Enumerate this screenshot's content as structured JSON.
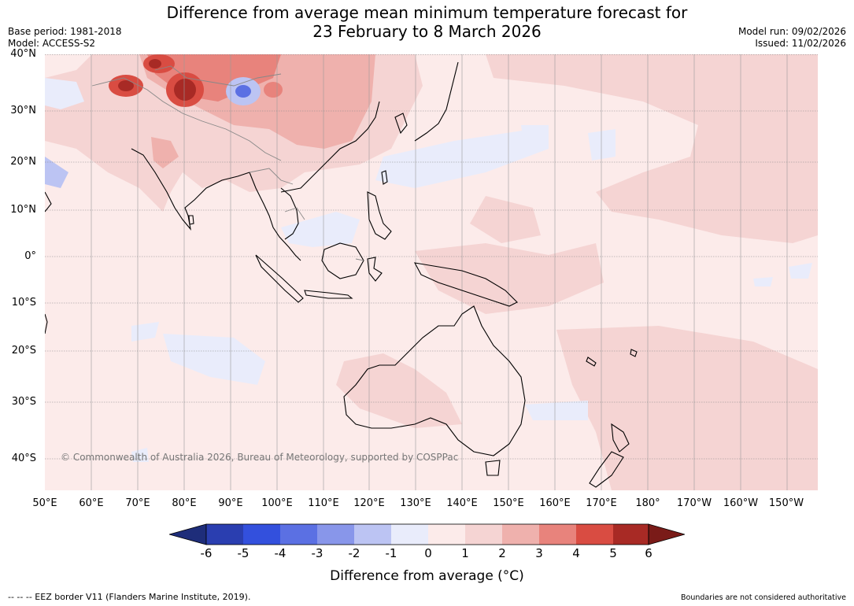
{
  "title_line1": "Difference from average mean minimum temperature forecast for",
  "title_line2": "23 February to 8 March 2026",
  "base_period": "Base period: 1981-2018",
  "model": "Model: ACCESS-S2",
  "model_run": "Model run: 09/02/2026",
  "issued": "Issued: 11/02/2026",
  "copyright": "© Commonwealth of Australia 2026, Bureau of Meteorology, supported by COSPPac",
  "eez_note": "--  --  -- EEZ border V11 (Flanders Marine Institute, 2019).",
  "boundaries_note": "Boundaries are not considered authoritative",
  "lat_labels": [
    "40°N",
    "30°N",
    "20°N",
    "10°N",
    "0°",
    "10°S",
    "20°S",
    "30°S",
    "40°S"
  ],
  "lon_labels": [
    "50°E",
    "60°E",
    "70°E",
    "80°E",
    "90°E",
    "100°E",
    "110°E",
    "120°E",
    "130°E",
    "140°E",
    "150°E",
    "160°E",
    "170°E",
    "180°",
    "170°W",
    "160°W",
    "150°W"
  ],
  "colorbar": {
    "title": "Difference from average (°C)",
    "ticks": [
      "-6",
      "-5",
      "-4",
      "-3",
      "-2",
      "-1",
      "0",
      "1",
      "2",
      "3",
      "4",
      "5",
      "6"
    ],
    "colors": [
      "#1e2d7a",
      "#2a3eb0",
      "#3350dd",
      "#5b70e3",
      "#8896ea",
      "#bcc4f3",
      "#e9ecfb",
      "#fcebea",
      "#f5d4d3",
      "#efb1ad",
      "#e8837c",
      "#d94c42",
      "#a82a25",
      "#7a1b18"
    ]
  },
  "colors": {
    "ocean_base": "#fcebea",
    "warm1": "#f5d4d3",
    "warm2": "#efb1ad",
    "warm3": "#e8837c",
    "warm4": "#d94c42",
    "warm5": "#a82a25",
    "cool1": "#e9ecfb",
    "cool2": "#bcc4f3",
    "cool3": "#5b70e3"
  }
}
